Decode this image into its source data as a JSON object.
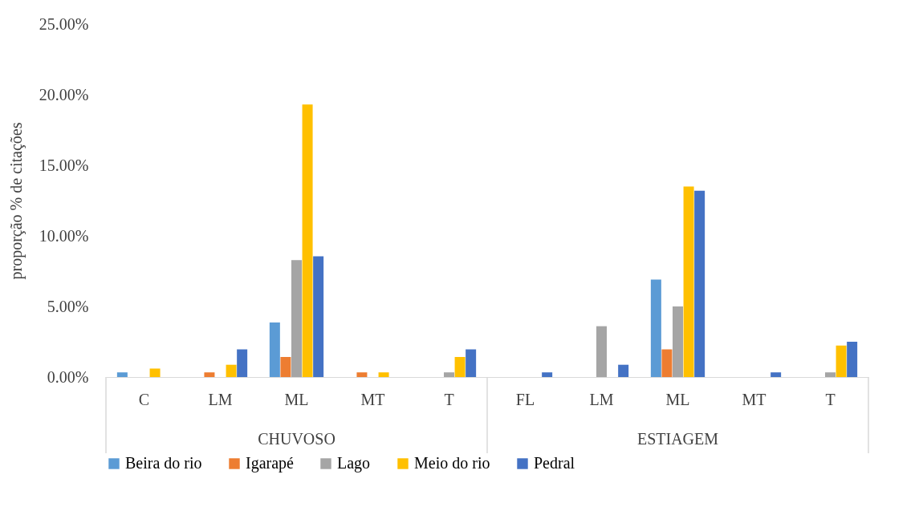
{
  "chart_data": {
    "type": "bar",
    "ylabel": "proporção % de citações",
    "categories": [
      "C",
      "LM",
      "ML",
      "MT",
      "T",
      "FL",
      "LM",
      "ML",
      "MT",
      "T"
    ],
    "annotations": [
      "CHUVOSO",
      "ESTIAGEM"
    ],
    "series": [
      {
        "name": "Beira do rio",
        "color": "#5b9bd5",
        "values": [
          0.33,
          0,
          3.87,
          0,
          0,
          0,
          0,
          6.9,
          0,
          0
        ]
      },
      {
        "name": "Igarapé",
        "color": "#ed7d31",
        "values": [
          0,
          0.33,
          1.42,
          0.33,
          0,
          0,
          0,
          1.96,
          0,
          0
        ]
      },
      {
        "name": "Lago",
        "color": "#a5a5a5",
        "values": [
          0,
          0,
          8.28,
          0,
          0.33,
          0,
          3.6,
          5.0,
          0,
          0.33
        ]
      },
      {
        "name": "Meio do rio",
        "color": "#ffc000",
        "values": [
          0.6,
          0.87,
          19.3,
          0.33,
          1.42,
          0,
          0,
          13.5,
          0,
          2.23
        ]
      },
      {
        "name": "Pedral",
        "color": "#4472c4",
        "values": [
          0,
          1.96,
          8.55,
          0,
          1.96,
          0.33,
          0.87,
          13.2,
          0.33,
          2.5
        ]
      }
    ],
    "ylim": [
      0,
      25
    ],
    "yticks": [
      {
        "value": 0,
        "label": "0.00%"
      },
      {
        "value": 5,
        "label": "5.00%"
      },
      {
        "value": 10,
        "label": "10.00%"
      },
      {
        "value": 15,
        "label": "15.00%"
      },
      {
        "value": 20,
        "label": "20.00%"
      },
      {
        "value": 25,
        "label": "25.00%"
      }
    ],
    "grid": false,
    "legend": "bottom"
  }
}
